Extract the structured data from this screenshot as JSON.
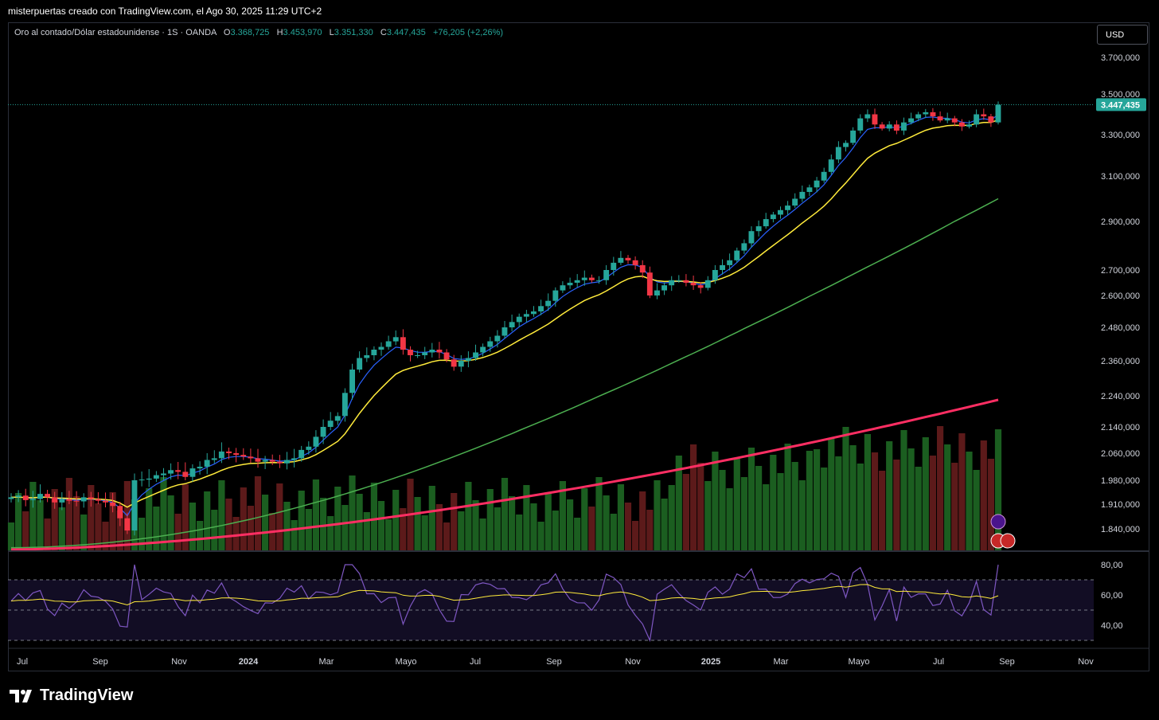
{
  "header": {
    "attribution": "misterpuertas creado con TradingView.com, el Ago 30, 2025 11:29 UTC+2"
  },
  "legend": {
    "symbol": "Oro al contado/Dólar estadounidense · 1S · OANDA",
    "open_label": "O",
    "open": "3.368,725",
    "high_label": "H",
    "high": "3.453,970",
    "low_label": "L",
    "low": "3.351,330",
    "close_label": "C",
    "close": "3.447,435",
    "change": "+76,205 (+2,26%)"
  },
  "currency_button": "USD",
  "brand": "TradingView",
  "colors": {
    "up": "#26a69a",
    "down": "#f23645",
    "ema_fast": "#2962ff",
    "ema_mid": "#ffeb3b",
    "ma_slow": "#4caf50",
    "ma_long": "#ff2e63",
    "vol_up": "#1b5e20",
    "vol_down": "#5c1a1a",
    "rsi": "#7e57c2",
    "rsi_ma": "#ffeb3b",
    "price_tag": "#26a69a"
  },
  "chart_data": {
    "type": "candlestick",
    "price_axis_labels": [
      "3.700,000",
      "3.500,000",
      "3.300,000",
      "3.100,000",
      "2.900,000",
      "2.700,000",
      "2.600,000",
      "2.480,000",
      "2.360,000",
      "2.240,000",
      "2.140,000",
      "2.060,000",
      "1.980,000",
      "1.910,000",
      "1.840,000"
    ],
    "price_axis_values": [
      3700,
      3500,
      3300,
      3100,
      2900,
      2700,
      2600,
      2480,
      2360,
      2240,
      2140,
      2060,
      1980,
      1910,
      1840
    ],
    "last_price_label": "3.447,435",
    "last_price": 3447.435,
    "time_axis_labels": [
      "Jul",
      "Sep",
      "Nov",
      "2024",
      "Mar",
      "Mayo",
      "Jul",
      "Sep",
      "Nov",
      "2025",
      "Mar",
      "Mayo",
      "Jul",
      "Sep",
      "Nov"
    ],
    "rsi_axis_labels": [
      "80,00",
      "60,00",
      "40,00"
    ],
    "rsi_axis_values": [
      80,
      60,
      40
    ],
    "rsi_bands": [
      70,
      50,
      30
    ],
    "candles_close_path": [
      1930,
      1935,
      1922,
      1925,
      1940,
      1930,
      1915,
      1925,
      1920,
      1918,
      1930,
      1925,
      1920,
      1915,
      1905,
      1870,
      1835,
      1980,
      1982,
      1985,
      1995,
      2000,
      2010,
      2005,
      1990,
      2015,
      2020,
      2040,
      2045,
      2065,
      2060,
      2055,
      2050,
      2045,
      2035,
      2040,
      2035,
      2030,
      2040,
      2045,
      2070,
      2080,
      2110,
      2140,
      2160,
      2175,
      2250,
      2330,
      2370,
      2380,
      2400,
      2410,
      2430,
      2445,
      2400,
      2380,
      2380,
      2390,
      2400,
      2390,
      2365,
      2340,
      2360,
      2370,
      2390,
      2410,
      2430,
      2450,
      2480,
      2500,
      2520,
      2530,
      2540,
      2560,
      2580,
      2620,
      2640,
      2650,
      2660,
      2670,
      2660,
      2660,
      2700,
      2730,
      2750,
      2740,
      2720,
      2690,
      2600,
      2620,
      2640,
      2660,
      2660,
      2650,
      2640,
      2630,
      2660,
      2700,
      2720,
      2740,
      2780,
      2810,
      2860,
      2880,
      2910,
      2930,
      2950,
      2970,
      3000,
      3030,
      3050,
      3080,
      3120,
      3180,
      3240,
      3260,
      3320,
      3380,
      3400,
      3350,
      3330,
      3350,
      3320,
      3360,
      3380,
      3400,
      3410,
      3390,
      3370,
      3380,
      3360,
      3340,
      3350,
      3400,
      3390,
      3360,
      3447
    ]
  }
}
